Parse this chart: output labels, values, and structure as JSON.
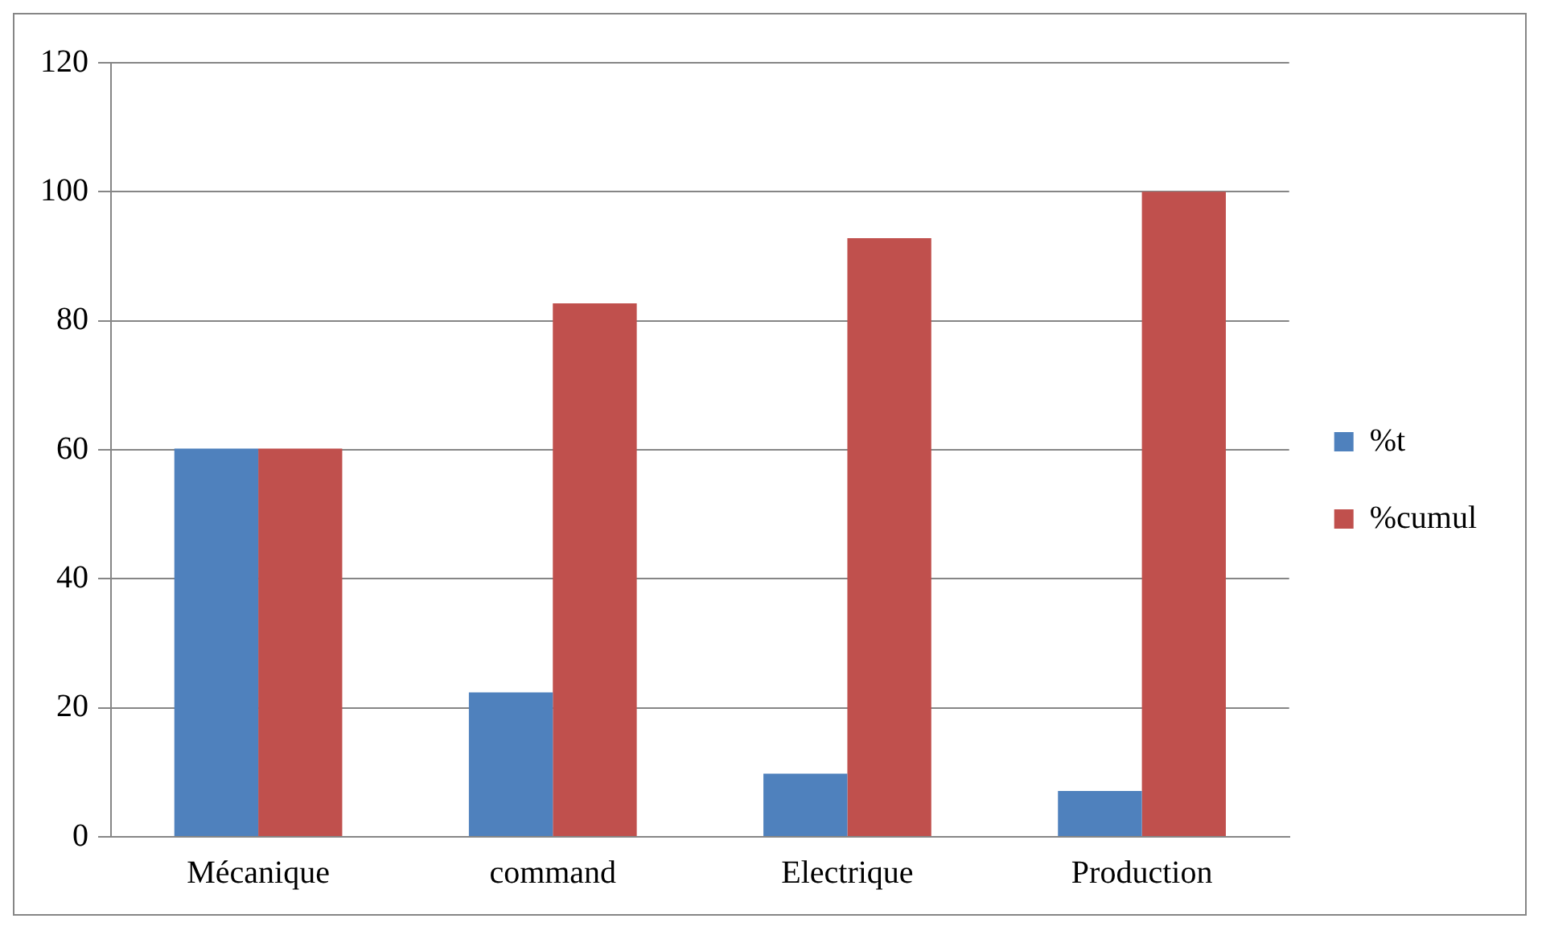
{
  "chart_data": {
    "type": "bar",
    "categories": [
      "Mécanique",
      "command",
      "Electrique",
      "Production"
    ],
    "series": [
      {
        "name": "%t",
        "color": "#4f81bd",
        "values": [
          60.2,
          22.4,
          9.8,
          7.1
        ]
      },
      {
        "name": "%cumul",
        "color": "#c0504d",
        "values": [
          60.2,
          82.7,
          92.8,
          100
        ]
      }
    ],
    "ylim": [
      0,
      120
    ],
    "yticks": [
      0,
      20,
      40,
      60,
      80,
      100,
      120
    ],
    "grid": "y",
    "legend": "right"
  }
}
